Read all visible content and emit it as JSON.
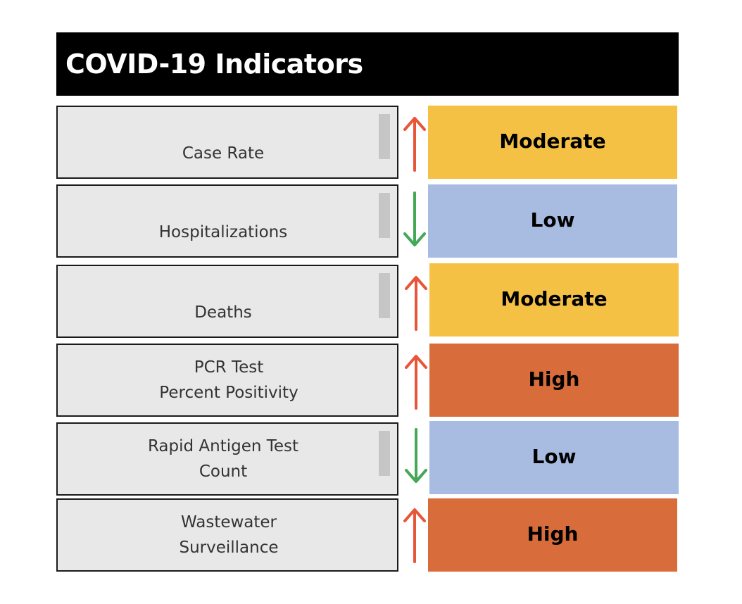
{
  "header": {
    "title": "COVID-19 Indicators"
  },
  "colors": {
    "moderate": "#f4c145",
    "low": "#a8bbe0",
    "high": "#d86d3b",
    "trend_up": "#e8563a",
    "trend_down": "#44a856",
    "label_bg": "#e8e8e8",
    "header_bg": "#000000"
  },
  "indicators": [
    {
      "label_lines": [
        "Case Rate"
      ],
      "trend": "up",
      "trend_icon": "arrow-up-icon",
      "level": "Moderate"
    },
    {
      "label_lines": [
        "Hospitalizations"
      ],
      "trend": "down",
      "trend_icon": "arrow-down-icon",
      "level": "Low"
    },
    {
      "label_lines": [
        "Deaths"
      ],
      "trend": "up",
      "trend_icon": "arrow-up-icon",
      "level": "Moderate"
    },
    {
      "label_lines": [
        "PCR Test",
        "Percent Positivity"
      ],
      "trend": "up",
      "trend_icon": "arrow-up-icon",
      "level": "High"
    },
    {
      "label_lines": [
        "Rapid Antigen Test",
        "Count"
      ],
      "trend": "down",
      "trend_icon": "arrow-down-icon",
      "level": "Low"
    },
    {
      "label_lines": [
        "Wastewater",
        "Surveillance"
      ],
      "trend": "up",
      "trend_icon": "arrow-up-icon",
      "level": "High"
    }
  ]
}
